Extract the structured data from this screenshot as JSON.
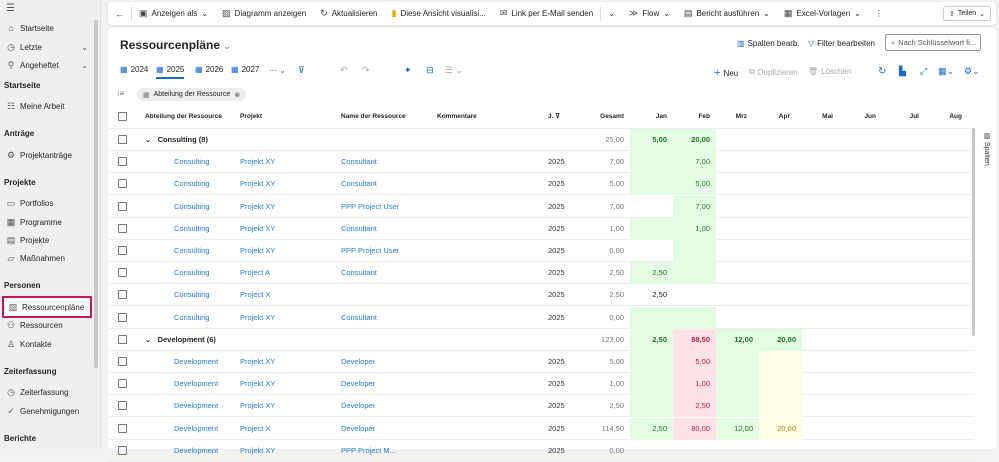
{
  "sidebar": {
    "top": [
      {
        "label": "Startseite",
        "icon": "home-icon"
      },
      {
        "label": "Letzte",
        "icon": "clock-icon",
        "chevron": true
      },
      {
        "label": "Angeheftet",
        "icon": "pin-icon",
        "chevron": true
      }
    ],
    "sections": [
      {
        "title": "Startseite",
        "items": [
          {
            "label": "Meine Arbeit",
            "icon": "tasks-icon"
          }
        ]
      },
      {
        "title": "Anträge",
        "items": [
          {
            "label": "Projektanträge",
            "icon": "gear-icon"
          }
        ]
      },
      {
        "title": "Projekte",
        "items": [
          {
            "label": "Portfolios",
            "icon": "folder-icon"
          },
          {
            "label": "Programme",
            "icon": "grid-icon"
          },
          {
            "label": "Projekte",
            "icon": "project-icon"
          },
          {
            "label": "Maßnahmen",
            "icon": "task-icon"
          }
        ]
      },
      {
        "title": "Personen",
        "items": [
          {
            "label": "Ressourcenpläne",
            "icon": "resource-plan-icon",
            "selected": true
          },
          {
            "label": "Ressourcen",
            "icon": "people-icon"
          },
          {
            "label": "Kontakte",
            "icon": "person-icon"
          }
        ]
      },
      {
        "title": "Zeiterfassung",
        "items": [
          {
            "label": "Zeiterfassung",
            "icon": "clock-icon"
          },
          {
            "label": "Genehmigungen",
            "icon": "check-circle-icon"
          }
        ]
      },
      {
        "title": "Berichte",
        "items": []
      }
    ]
  },
  "commandbar": {
    "anzeigen_als": "Anzeigen als",
    "diagramm": "Diagramm anzeigen",
    "aktualisieren": "Aktualisieren",
    "visualisieren": "Diese Ansicht visualisi...",
    "link_email": "Link per E-Mail senden",
    "flow": "Flow",
    "bericht": "Bericht ausführen",
    "excel": "Excel-Vorlagen",
    "teilen": "Teilen"
  },
  "view": {
    "title": "Ressourcenpläne",
    "spalten_bearb": "Spalten bearb.",
    "filter_bearbeiten": "Filter bearbeiten",
    "search_placeholder": "Nach Schlüsselwort fi...",
    "years": [
      "2024",
      "2025",
      "2026",
      "2027"
    ],
    "selected_year": "2025",
    "neu": "Neu",
    "duplizieren": "Duplizieren",
    "loeschen": "Löschen",
    "group_chip": "Abteilung der Ressource",
    "spalten_panel": "Spalten"
  },
  "colors": {
    "green_bg": "#e3fce3",
    "red_bg": "#fde3e5",
    "yellow_bg": "#fefee2",
    "green_text": "#1f7a1f",
    "red_text": "#b4243c",
    "orange_text": "#c07a10",
    "accent": "#2266c4"
  },
  "table": {
    "columns": [
      "Abteilung der Ressource",
      "Projekt",
      "Name der Ressource",
      "Kommentare",
      "J.",
      "Gesamt",
      "Jan",
      "Feb",
      "Mrz",
      "Apr",
      "Mai",
      "Jun",
      "Jul",
      "Aug"
    ],
    "rows": [
      {
        "group": "Consulting (8)",
        "gesamt": "25,00",
        "months": [
          [
            "5,00",
            "g",
            "tg"
          ],
          [
            "20,00",
            "g",
            "tg"
          ]
        ]
      },
      {
        "abt": "Consulting",
        "projekt": "Projekt XY",
        "name": "Consultant",
        "j": "2025",
        "gesamt": "7,00",
        "months": [
          [
            "",
            "g"
          ],
          [
            "7,00",
            "g",
            "tg"
          ]
        ]
      },
      {
        "abt": "Consulting",
        "projekt": "Projekt XY",
        "name": "Consultant",
        "j": "2025",
        "gesamt": "5,00",
        "months": [
          [
            "",
            "g"
          ],
          [
            "5,00",
            "g",
            "tg"
          ]
        ]
      },
      {
        "abt": "Consulting",
        "projekt": "Projekt XY",
        "name": "PPP Project User",
        "j": "2025",
        "gesamt": "7,00",
        "months": [
          [
            "",
            ""
          ],
          [
            "7,00",
            "g",
            "tg"
          ]
        ]
      },
      {
        "abt": "Consulting",
        "projekt": "Projekt XY",
        "name": "Consultant",
        "j": "2025",
        "gesamt": "1,00",
        "months": [
          [
            "",
            "g"
          ],
          [
            "1,00",
            "g",
            "tg"
          ]
        ]
      },
      {
        "abt": "Consulting",
        "projekt": "Projekt XY",
        "name": "PPP Project User",
        "j": "2025",
        "gesamt": "0,00",
        "months": [
          [
            "",
            ""
          ],
          [
            "",
            "g"
          ]
        ]
      },
      {
        "abt": "Consulting",
        "projekt": "Project A",
        "name": "Consultant",
        "j": "2025",
        "gesamt": "2,50",
        "months": [
          [
            "2,50",
            "g",
            "tg"
          ],
          [
            "",
            "g"
          ]
        ]
      },
      {
        "abt": "Consulting",
        "projekt": "Project X",
        "name": "",
        "j": "2025",
        "gesamt": "2,50",
        "months": [
          [
            "2,50",
            "",
            "tk"
          ]
        ]
      },
      {
        "abt": "Consulting",
        "projekt": "Projekt XY",
        "name": "Consultant",
        "j": "2025",
        "gesamt": "0,00",
        "months": [
          [
            "",
            "g"
          ],
          [
            "",
            "g"
          ]
        ]
      },
      {
        "group": "Development (6)",
        "gesamt": "123,00",
        "months": [
          [
            "2,50",
            "g",
            "tg"
          ],
          [
            "88,50",
            "r",
            "tr"
          ],
          [
            "12,00",
            "g",
            "tg"
          ],
          [
            "20,00",
            "g",
            "tg"
          ]
        ]
      },
      {
        "abt": "Development",
        "projekt": "Projekt XY",
        "name": "Developer",
        "j": "2025",
        "gesamt": "5,00",
        "months": [
          [
            "",
            "g"
          ],
          [
            "5,00",
            "r",
            "tr"
          ],
          [
            "",
            "g"
          ],
          [
            "",
            "y"
          ]
        ]
      },
      {
        "abt": "Development",
        "projekt": "Projekt XY",
        "name": "Developer",
        "j": "2025",
        "gesamt": "1,00",
        "months": [
          [
            "",
            "g"
          ],
          [
            "1,00",
            "r",
            "tr"
          ],
          [
            "",
            "g"
          ],
          [
            "",
            "y"
          ]
        ]
      },
      {
        "abt": "Development",
        "projekt": "Projekt XY",
        "name": "Developer",
        "j": "2025",
        "gesamt": "2,50",
        "months": [
          [
            "",
            "g"
          ],
          [
            "2,50",
            "r",
            "tr"
          ],
          [
            "",
            "g"
          ],
          [
            "",
            "y"
          ]
        ]
      },
      {
        "abt": "Development",
        "projekt": "Project X",
        "name": "Developer",
        "j": "2025",
        "gesamt": "114,50",
        "months": [
          [
            "2,50",
            "g",
            "tg"
          ],
          [
            "80,00",
            "r",
            "tr"
          ],
          [
            "12,00",
            "g",
            "tg"
          ],
          [
            "20,00",
            "y",
            "to"
          ]
        ]
      },
      {
        "abt": "Development",
        "projekt": "Projekt XY",
        "name": "PPP Project M...",
        "j": "2025",
        "gesamt": "0,00",
        "months": []
      }
    ]
  }
}
